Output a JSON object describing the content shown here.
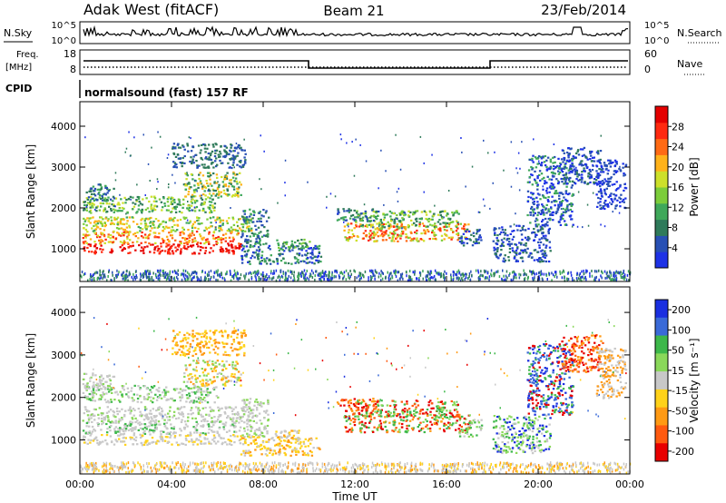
{
  "header": {
    "station": "Adak West (fitACF)",
    "beam": "Beam 21",
    "date": "23/Feb/2014"
  },
  "top_panel": {
    "left_label": "N.Sky",
    "left_ticks": [
      "10^5",
      "10^0"
    ],
    "right_ticks": [
      "10^5",
      "10^0"
    ],
    "right_label": "N.Search"
  },
  "freq_panel": {
    "left_label_1": "Freq.",
    "left_label_2": "[MHz]",
    "left_ticks": [
      "18",
      "8"
    ],
    "right_ticks": [
      "60",
      "0"
    ],
    "right_label": "Nave"
  },
  "cpid_panel": {
    "label": "CPID",
    "program": "normalsound (fast) 157 RF"
  },
  "colors": {
    "power": [
      "#1e32e6",
      "#2850b4",
      "#2f7a5a",
      "#3fa85a",
      "#7ccd3a",
      "#cde02a",
      "#ffb21a",
      "#ff6a14",
      "#ff2a10",
      "#e40000"
    ],
    "velocity": [
      "#1a2fe0",
      "#3a6ad8",
      "#3db84a",
      "#8ad85a",
      "#c8c8c8",
      "#ffd21a",
      "#ff9a14",
      "#ff5a10",
      "#e80000"
    ]
  },
  "chart_data": [
    {
      "type": "heatmap",
      "name": "power",
      "ylabel": "Slant Range [km]",
      "yticks": [
        "1000",
        "2000",
        "3000",
        "4000"
      ],
      "ylim": [
        200,
        4600
      ],
      "colorbar_label": "Power [dB]",
      "colorbar_ticks": [
        "4",
        "8",
        "12",
        "16",
        "20",
        "24",
        "28"
      ],
      "colorbar_range": [
        0,
        32
      ],
      "grid": false
    },
    {
      "type": "heatmap",
      "name": "velocity",
      "ylabel": "Slant Range [km]",
      "yticks": [
        "1000",
        "2000",
        "3000",
        "4000"
      ],
      "ylim": [
        200,
        4600
      ],
      "colorbar_label": "Velocity [m s⁻¹]",
      "colorbar_ticks": [
        "200",
        "100",
        "50",
        "15",
        "-15",
        "-50",
        "-100",
        "-200"
      ],
      "grid": false,
      "xlabel": "Time UT",
      "xticks": [
        "00:00",
        "04:00",
        "08:00",
        "12:00",
        "16:00",
        "20:00",
        "00:00"
      ],
      "xlim": [
        "00:00",
        "24:00"
      ]
    }
  ]
}
